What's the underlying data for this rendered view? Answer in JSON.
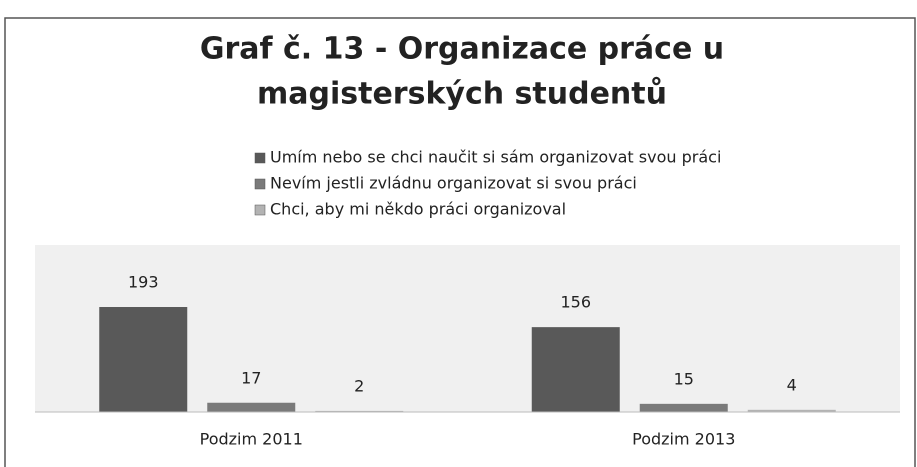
{
  "chart_data": {
    "type": "bar",
    "title": [
      "Graf č. 13 - Organizace práce u",
      "magisterských studentů"
    ],
    "categories": [
      "Podzim 2011",
      "Podzim 2013"
    ],
    "series": [
      {
        "name": "Umím nebo se chci naučit si sám organizovat svou práci",
        "color": "#595959",
        "values": [
          193,
          156
        ]
      },
      {
        "name": "Nevím jestli zvládnu organizovat si svou práci",
        "color": "#7a7a7a",
        "values": [
          17,
          15
        ]
      },
      {
        "name": "Chci, aby mi někdo práci organizoval",
        "color": "#b3b3b3",
        "values": [
          2,
          4
        ]
      }
    ],
    "ylim": [
      0,
      307
    ],
    "legend": "top"
  }
}
